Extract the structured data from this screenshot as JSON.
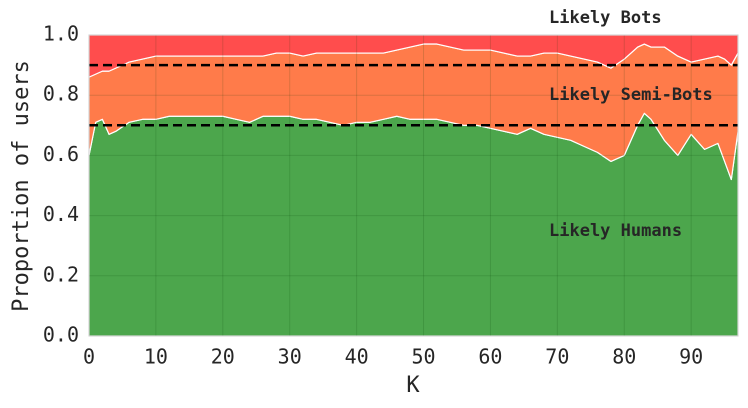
{
  "chart_data": {
    "type": "area",
    "xlabel": "K",
    "ylabel": "Proportion of users",
    "x": [
      0,
      1,
      2,
      3,
      4,
      6,
      8,
      10,
      12,
      14,
      16,
      18,
      20,
      22,
      24,
      26,
      28,
      30,
      32,
      34,
      36,
      38,
      40,
      42,
      44,
      46,
      48,
      50,
      52,
      54,
      56,
      58,
      60,
      62,
      64,
      66,
      68,
      70,
      72,
      74,
      76,
      78,
      80,
      82,
      83,
      84,
      86,
      88,
      90,
      92,
      94,
      95,
      96,
      97
    ],
    "series": [
      {
        "name": "Likely Humans",
        "color": "#4ca64c",
        "values": [
          0.6,
          0.71,
          0.72,
          0.67,
          0.68,
          0.71,
          0.72,
          0.72,
          0.73,
          0.73,
          0.73,
          0.73,
          0.73,
          0.72,
          0.71,
          0.73,
          0.73,
          0.73,
          0.72,
          0.72,
          0.71,
          0.7,
          0.71,
          0.71,
          0.72,
          0.73,
          0.72,
          0.72,
          0.72,
          0.71,
          0.7,
          0.7,
          0.69,
          0.68,
          0.67,
          0.69,
          0.67,
          0.66,
          0.65,
          0.63,
          0.61,
          0.58,
          0.6,
          0.7,
          0.74,
          0.72,
          0.65,
          0.6,
          0.67,
          0.62,
          0.64,
          0.58,
          0.52,
          0.68
        ]
      },
      {
        "name": "Likely Semi-Bots",
        "color": "#ff7b4a",
        "values": [
          0.26,
          0.16,
          0.16,
          0.21,
          0.21,
          0.2,
          0.2,
          0.21,
          0.2,
          0.2,
          0.2,
          0.2,
          0.2,
          0.21,
          0.22,
          0.2,
          0.21,
          0.21,
          0.21,
          0.22,
          0.23,
          0.24,
          0.23,
          0.23,
          0.22,
          0.22,
          0.24,
          0.25,
          0.25,
          0.25,
          0.25,
          0.25,
          0.26,
          0.26,
          0.26,
          0.24,
          0.27,
          0.28,
          0.28,
          0.29,
          0.3,
          0.31,
          0.32,
          0.26,
          0.23,
          0.24,
          0.31,
          0.33,
          0.24,
          0.3,
          0.29,
          0.34,
          0.38,
          0.26
        ]
      },
      {
        "name": "Likely Bots",
        "color": "#ff4d4d",
        "values": [
          0.14,
          0.13,
          0.12,
          0.12,
          0.11,
          0.09,
          0.08,
          0.07,
          0.07,
          0.07,
          0.07,
          0.07,
          0.07,
          0.07,
          0.07,
          0.07,
          0.06,
          0.06,
          0.07,
          0.06,
          0.06,
          0.06,
          0.06,
          0.06,
          0.06,
          0.05,
          0.04,
          0.03,
          0.03,
          0.04,
          0.05,
          0.05,
          0.05,
          0.06,
          0.07,
          0.07,
          0.06,
          0.06,
          0.07,
          0.08,
          0.09,
          0.11,
          0.08,
          0.04,
          0.03,
          0.04,
          0.04,
          0.07,
          0.09,
          0.08,
          0.07,
          0.08,
          0.1,
          0.06
        ]
      }
    ],
    "thresholds": [
      0.9,
      0.7
    ],
    "xlim": [
      0,
      97
    ],
    "ylim": [
      0,
      1
    ],
    "xticks": [
      0,
      10,
      20,
      30,
      40,
      50,
      60,
      70,
      80,
      90
    ],
    "yticks": [
      {
        "value": 0,
        "label": "0.0"
      },
      {
        "value": 0.2,
        "label": "0.2"
      },
      {
        "value": 0.4,
        "label": "0.4"
      },
      {
        "value": 0.6,
        "label": "0.6"
      },
      {
        "value": 0.8,
        "label": "0.8"
      },
      {
        "value": 1,
        "label": "1.0"
      }
    ],
    "grid": true
  }
}
